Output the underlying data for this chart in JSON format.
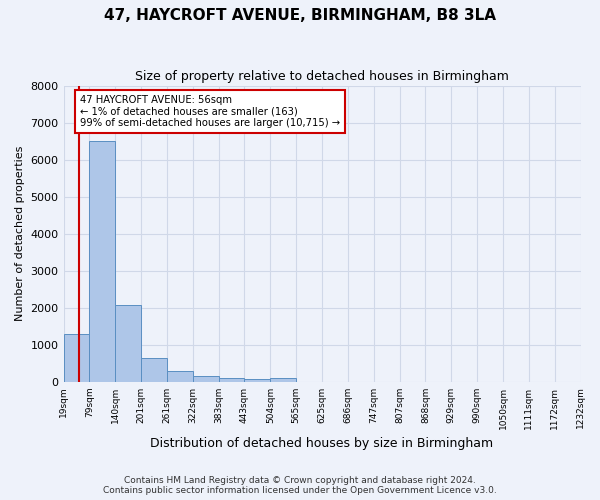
{
  "title": "47, HAYCROFT AVENUE, BIRMINGHAM, B8 3LA",
  "subtitle": "Size of property relative to detached houses in Birmingham",
  "xlabel": "Distribution of detached houses by size in Birmingham",
  "ylabel": "Number of detached properties",
  "footer_line1": "Contains HM Land Registry data © Crown copyright and database right 2024.",
  "footer_line2": "Contains public sector information licensed under the Open Government Licence v3.0.",
  "bin_labels": [
    "19sqm",
    "79sqm",
    "140sqm",
    "201sqm",
    "261sqm",
    "322sqm",
    "383sqm",
    "443sqm",
    "504sqm",
    "565sqm",
    "625sqm",
    "686sqm",
    "747sqm",
    "807sqm",
    "868sqm",
    "929sqm",
    "990sqm",
    "1050sqm",
    "1111sqm",
    "1172sqm",
    "1232sqm"
  ],
  "bar_values": [
    1300,
    6500,
    2080,
    650,
    290,
    140,
    90,
    80,
    105,
    0,
    0,
    0,
    0,
    0,
    0,
    0,
    0,
    0,
    0,
    0
  ],
  "bar_color": "#aec6e8",
  "bar_edge_color": "#5a8fc2",
  "ylim": [
    0,
    8000
  ],
  "yticks": [
    0,
    1000,
    2000,
    3000,
    4000,
    5000,
    6000,
    7000,
    8000
  ],
  "annotation_text_line1": "47 HAYCROFT AVENUE: 56sqm",
  "annotation_text_line2": "← 1% of detached houses are smaller (163)",
  "annotation_text_line3": "99% of semi-detached houses are larger (10,715) →",
  "annotation_box_color": "#ffffff",
  "annotation_box_edge_color": "#cc0000",
  "red_line_color": "#cc0000",
  "grid_color": "#d0d8e8",
  "background_color": "#eef2fa"
}
